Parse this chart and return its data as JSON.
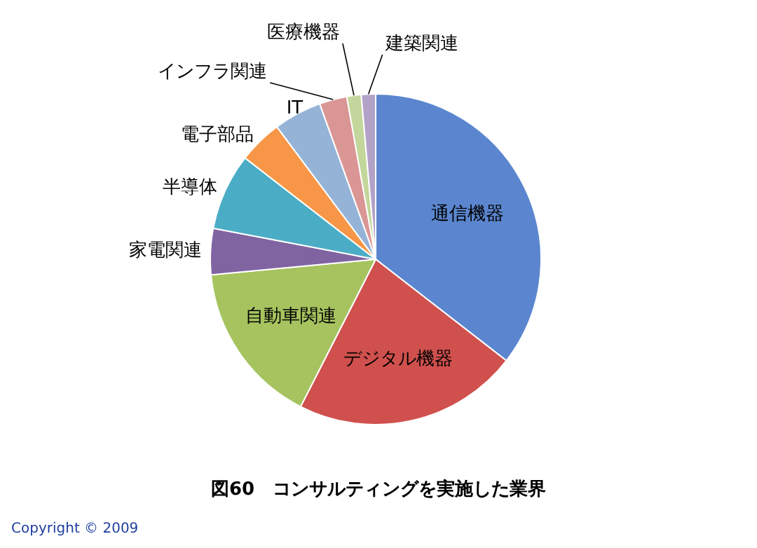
{
  "chart_data": {
    "type": "pie",
    "title": "図60　コンサルティングを実施した業界",
    "categories": [
      "通信機器",
      "デジタル機器",
      "自動車関連",
      "家電関連",
      "半導体",
      "電子部品",
      "IT",
      "インフラ関連",
      "医療機器",
      "建築関連"
    ],
    "values": [
      35.5,
      22,
      16,
      4.5,
      7.5,
      4.3,
      4.7,
      2.7,
      1.4,
      1.4
    ],
    "colors": [
      "#5b86cf",
      "#d0504d",
      "#a6c35f",
      "#8064a2",
      "#4bacc6",
      "#f79646",
      "#95b3d7",
      "#da9694",
      "#c3d69b",
      "#b3a2c7"
    ],
    "annotations": [
      "Copyright © 2009"
    ]
  }
}
